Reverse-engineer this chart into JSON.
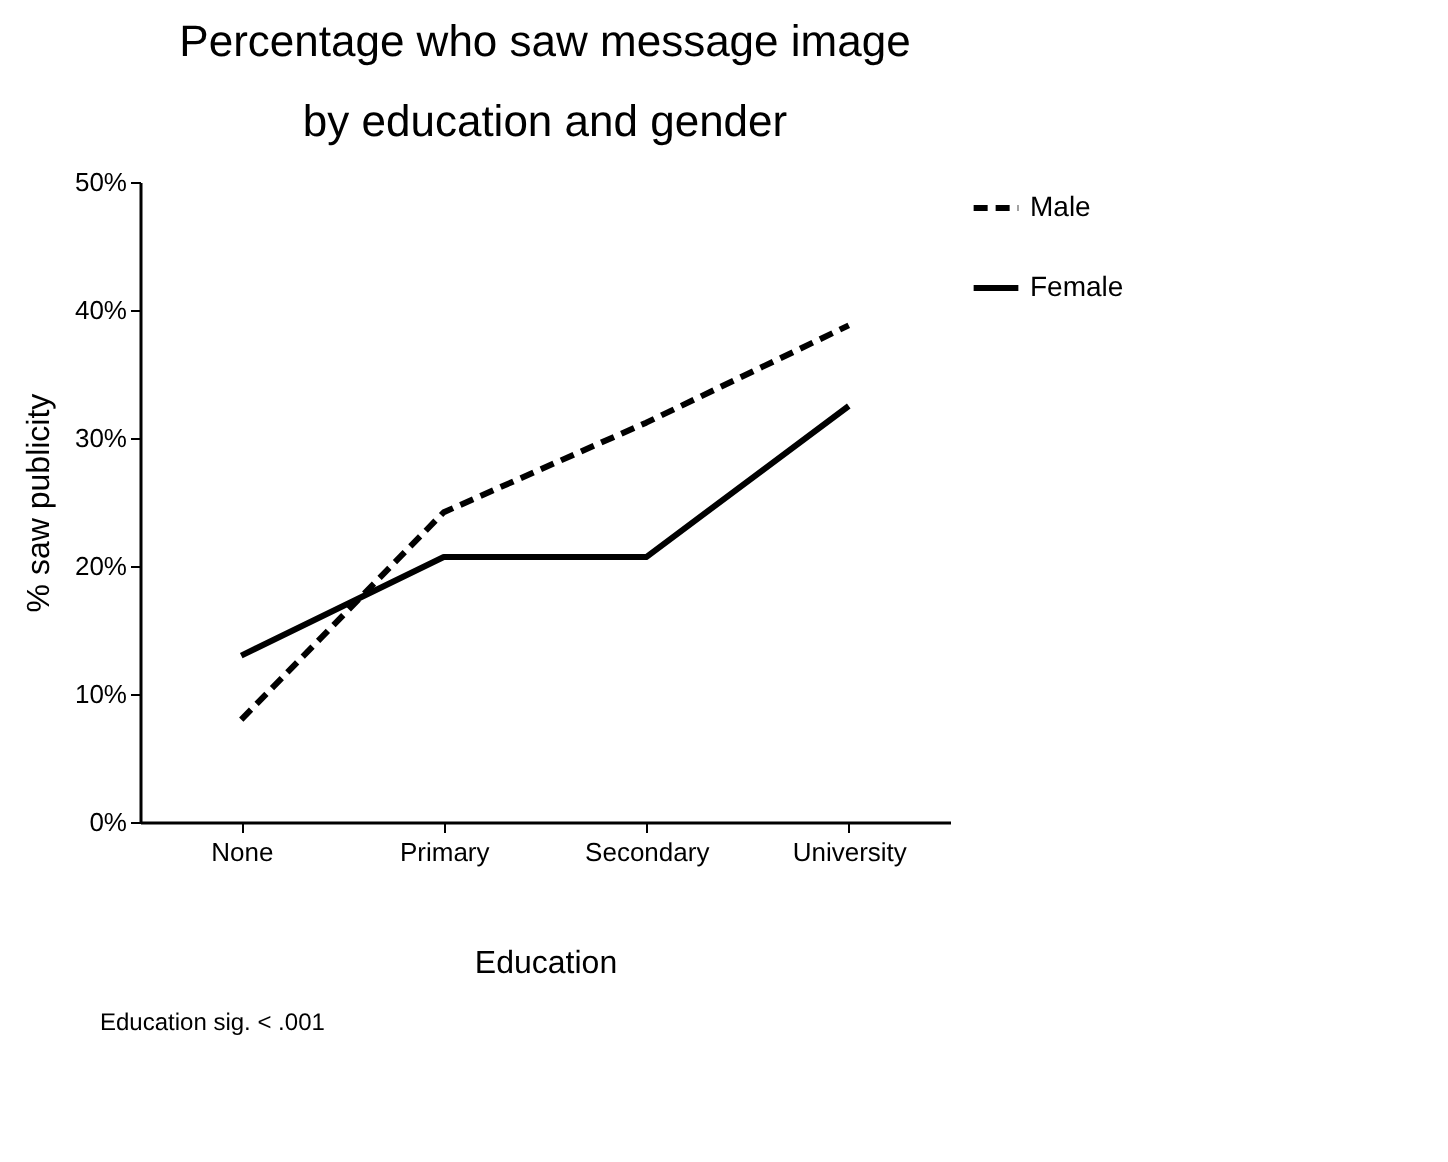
{
  "chart_data": {
    "type": "line",
    "title": "Percentage who saw message image\nby education and gender",
    "xlabel": "Education",
    "ylabel": "% saw publicity",
    "categories": [
      "None",
      "Primary",
      "Secondary",
      "University"
    ],
    "series": [
      {
        "name": "Male",
        "color": "#000000",
        "line_style": "dashed",
        "values": [
          8.0,
          24.2,
          31.2,
          38.8
        ]
      },
      {
        "name": "Female",
        "color": "#000000",
        "line_style": "solid",
        "values": [
          13.0,
          20.7,
          20.7,
          32.5
        ]
      }
    ],
    "ylim": [
      0,
      50
    ],
    "yticks": [
      {
        "value": 0,
        "label": "0%"
      },
      {
        "value": 10,
        "label": "10%"
      },
      {
        "value": 20,
        "label": "20%"
      },
      {
        "value": 30,
        "label": "30%"
      },
      {
        "value": 40,
        "label": "40%"
      },
      {
        "value": 50,
        "label": "50%"
      }
    ],
    "grid": false,
    "legend": "right",
    "marker": "none",
    "annotations": [
      "Education sig. < .001"
    ]
  }
}
